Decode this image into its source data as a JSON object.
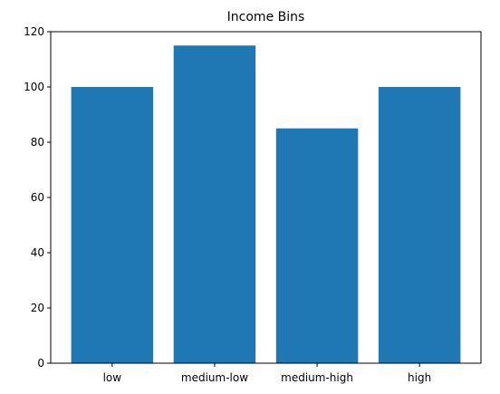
{
  "chart_data": {
    "type": "bar",
    "title": "Income Bins",
    "xlabel": "",
    "ylabel": "",
    "categories": [
      "low",
      "medium-low",
      "medium-high",
      "high"
    ],
    "values": [
      100,
      115,
      85,
      100
    ],
    "ylim": [
      0,
      120
    ],
    "yticks": [
      0,
      20,
      40,
      60,
      80,
      100,
      120
    ],
    "grid": false,
    "bar_color": "#1f77b4"
  }
}
